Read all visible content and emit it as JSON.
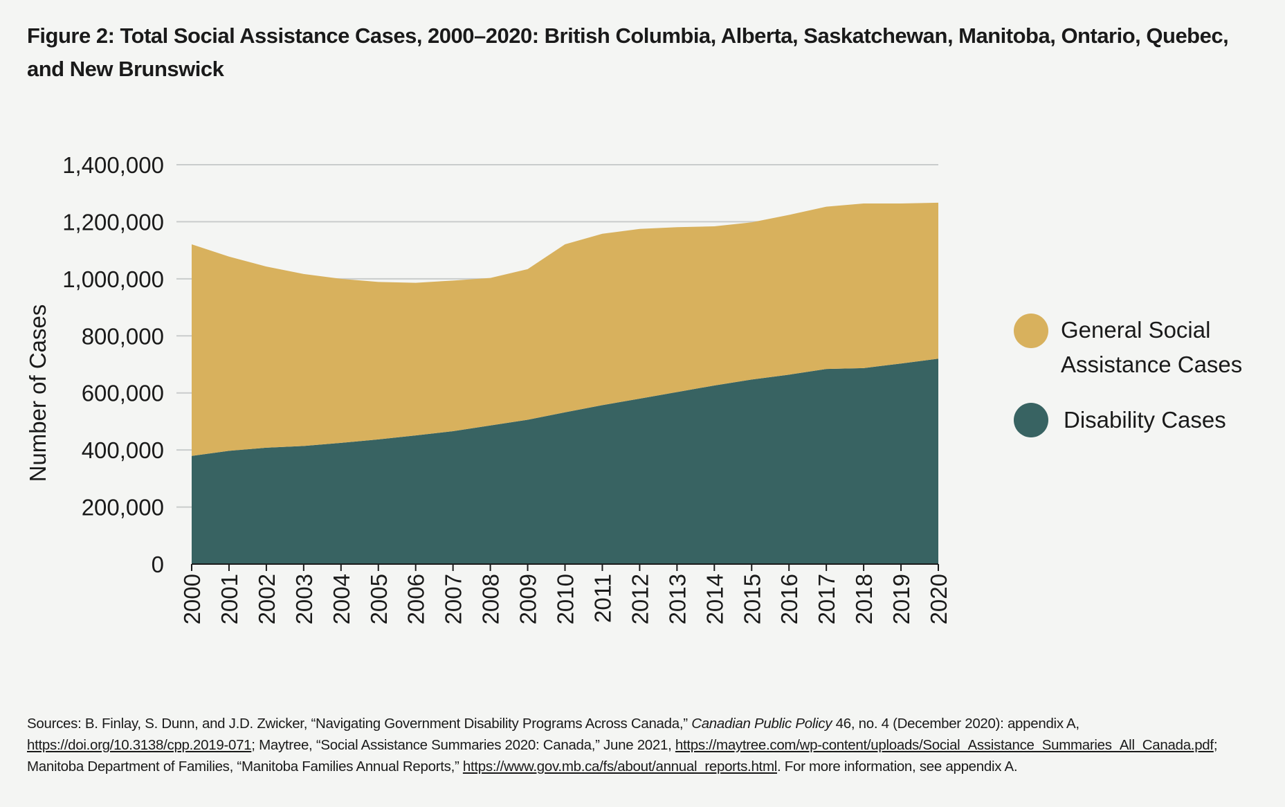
{
  "title": "Figure 2: Total Social Assistance Cases, 2000–2020: British Columbia, Alberta, Saskatchewan, Manitoba, Ontario, Quebec, and New Brunswick",
  "chart_data": {
    "type": "area",
    "stacked": true,
    "title": "Figure 2: Total Social Assistance Cases, 2000–2020: British Columbia, Alberta, Saskatchewan, Manitoba, Ontario, Quebec, and New Brunswick",
    "xlabel": "",
    "ylabel": "Number of Cases",
    "x": [
      2000,
      2001,
      2002,
      2003,
      2004,
      2005,
      2006,
      2007,
      2008,
      2009,
      2010,
      2011,
      2012,
      2013,
      2014,
      2015,
      2016,
      2017,
      2018,
      2019,
      2020
    ],
    "ylim": [
      0,
      1400000
    ],
    "yticks": [
      0,
      200000,
      400000,
      600000,
      800000,
      1000000,
      1200000,
      1400000
    ],
    "ytick_labels": [
      "0",
      "200,000",
      "400,000",
      "600,000",
      "800,000",
      "1,000,000",
      "1,200,000",
      "1,400,000"
    ],
    "grid": "horizontal",
    "legend_position": "right",
    "series": [
      {
        "name": "Disability Cases",
        "color": "#386362",
        "values": [
          379000,
          397000,
          408000,
          414000,
          425000,
          437000,
          451000,
          466000,
          486000,
          506000,
          532000,
          557000,
          580000,
          603000,
          626000,
          647000,
          664000,
          684000,
          687000,
          703000,
          720000
        ]
      },
      {
        "name": "General Social Assistance Cases",
        "color": "#d8b15d",
        "values": [
          742000,
          681000,
          635000,
          603000,
          575000,
          552000,
          535000,
          528000,
          517000,
          528000,
          589000,
          601000,
          595000,
          578000,
          558000,
          551000,
          560000,
          569000,
          577000,
          561000,
          547000
        ]
      }
    ]
  },
  "legend": {
    "general_line1": "General Social",
    "general_line2": "Assistance Cases",
    "disability": "Disability Cases"
  },
  "sources": {
    "s1": "Sources: B. Finlay, S. Dunn, and J.D. Zwicker, “Navigating Government Disability Programs Across Canada,” ",
    "s1_italic": "Canadian Public Policy",
    "s2": " 46, no. 4 (December 2020): appendix A, ",
    "link1": "https://doi.org/10.3138/cpp.2019-071",
    "s3": "; Maytree, “Social Assistance Summaries 2020: Canada,” June 2021, ",
    "link2": "https://maytree.com/wp-content/uploads/Social_Assistance_Summaries_All_Canada.pdf",
    "s4": "; Manitoba Department of Families, “Manitoba Families Annual Reports,” ",
    "link3": "https://www.gov.mb.ca/fs/about/annual_reports.html",
    "s5": ". For more information, see appendix A."
  }
}
